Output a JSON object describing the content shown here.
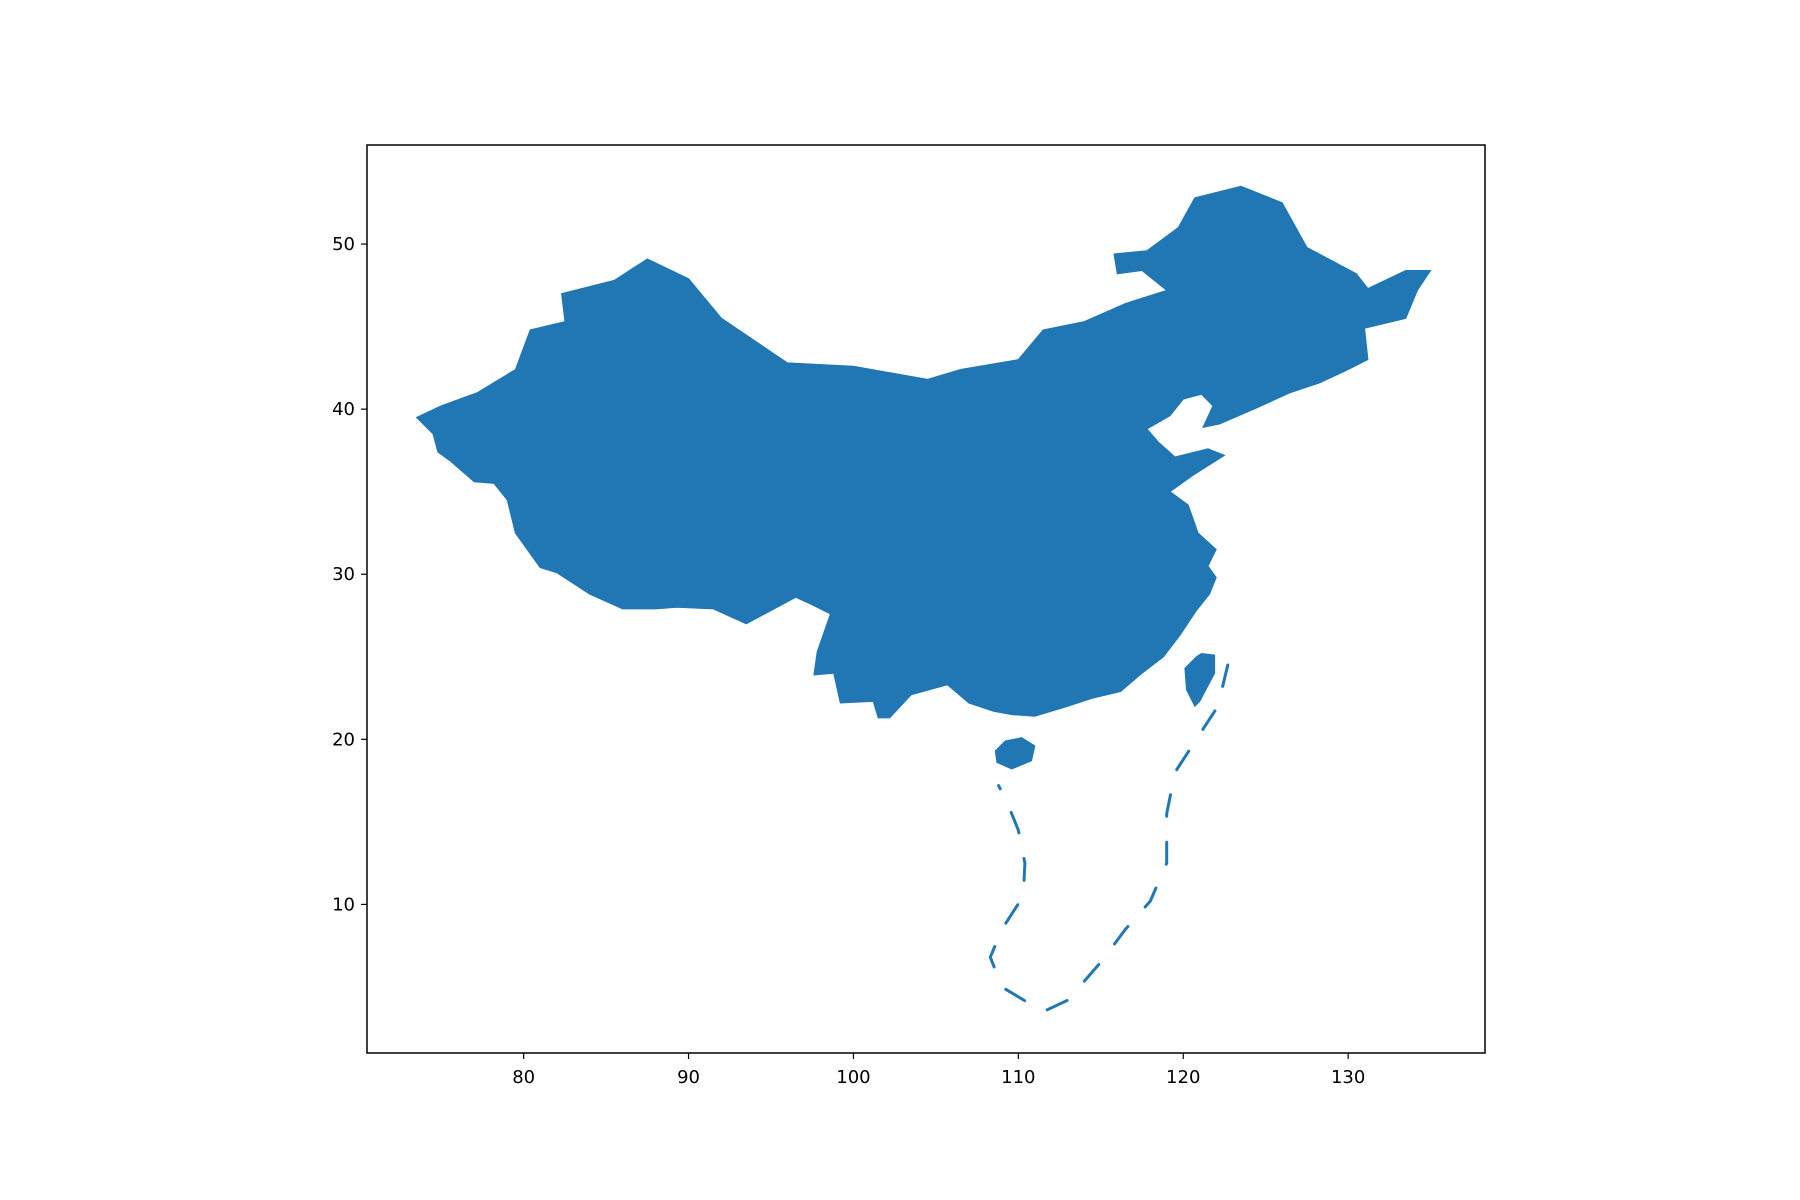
{
  "chart_data": {
    "type": "map",
    "title": "",
    "xlabel": "",
    "ylabel": "",
    "xlim": [
      70.5,
      138.3
    ],
    "ylim": [
      1,
      56
    ],
    "x_ticks": [
      80,
      90,
      100,
      110,
      120,
      130
    ],
    "y_ticks": [
      10,
      20,
      30,
      40,
      50
    ],
    "grid": false,
    "legend": "none",
    "fill_color": "#2077b4",
    "outline": [
      [
        73.5,
        39.5
      ],
      [
        75.0,
        40.2
      ],
      [
        77.2,
        41.0
      ],
      [
        79.5,
        42.4
      ],
      [
        80.4,
        44.8
      ],
      [
        82.5,
        45.3
      ],
      [
        82.3,
        47.0
      ],
      [
        85.5,
        47.8
      ],
      [
        87.5,
        49.1
      ],
      [
        90.0,
        47.9
      ],
      [
        91.0,
        46.7
      ],
      [
        92.0,
        45.5
      ],
      [
        96.0,
        42.8
      ],
      [
        100.0,
        42.6
      ],
      [
        104.5,
        41.8
      ],
      [
        106.5,
        42.4
      ],
      [
        110.0,
        43.0
      ],
      [
        111.5,
        44.8
      ],
      [
        114.0,
        45.3
      ],
      [
        116.5,
        46.4
      ],
      [
        119.0,
        47.2
      ],
      [
        117.5,
        48.4
      ],
      [
        116.0,
        48.2
      ],
      [
        115.8,
        49.4
      ],
      [
        117.8,
        49.6
      ],
      [
        119.7,
        51.0
      ],
      [
        120.7,
        52.8
      ],
      [
        123.5,
        53.5
      ],
      [
        126.0,
        52.5
      ],
      [
        127.5,
        49.8
      ],
      [
        130.5,
        48.2
      ],
      [
        131.2,
        47.3
      ],
      [
        133.5,
        48.4
      ],
      [
        135.0,
        48.4
      ],
      [
        134.2,
        47.2
      ],
      [
        133.5,
        45.5
      ],
      [
        131.0,
        44.9
      ],
      [
        131.2,
        43.0
      ],
      [
        130.0,
        42.4
      ],
      [
        128.3,
        41.6
      ],
      [
        126.5,
        41.0
      ],
      [
        124.3,
        40.0
      ],
      [
        122.2,
        39.1
      ],
      [
        121.2,
        38.9
      ],
      [
        121.8,
        40.2
      ],
      [
        121.1,
        40.9
      ],
      [
        120.0,
        40.6
      ],
      [
        119.2,
        39.6
      ],
      [
        117.8,
        38.8
      ],
      [
        118.5,
        38.0
      ],
      [
        119.5,
        37.1
      ],
      [
        121.5,
        37.6
      ],
      [
        122.5,
        37.2
      ],
      [
        120.6,
        36.0
      ],
      [
        119.2,
        35.0
      ],
      [
        120.3,
        34.2
      ],
      [
        120.9,
        32.5
      ],
      [
        122.0,
        31.5
      ],
      [
        121.5,
        30.5
      ],
      [
        122.0,
        29.8
      ],
      [
        121.6,
        28.8
      ],
      [
        120.8,
        27.8
      ],
      [
        119.8,
        26.3
      ],
      [
        118.8,
        25.0
      ],
      [
        117.5,
        24.0
      ],
      [
        116.2,
        22.9
      ],
      [
        114.5,
        22.5
      ],
      [
        113.0,
        22.0
      ],
      [
        111.0,
        21.4
      ],
      [
        109.6,
        21.5
      ],
      [
        108.5,
        21.7
      ],
      [
        107.0,
        22.2
      ],
      [
        105.7,
        23.3
      ],
      [
        103.5,
        22.7
      ],
      [
        102.2,
        21.3
      ],
      [
        101.5,
        21.3
      ],
      [
        101.2,
        22.3
      ],
      [
        99.2,
        22.2
      ],
      [
        98.8,
        24.0
      ],
      [
        97.6,
        23.9
      ],
      [
        97.8,
        25.3
      ],
      [
        98.6,
        27.6
      ],
      [
        97.4,
        28.2
      ],
      [
        96.5,
        28.6
      ],
      [
        93.5,
        27.0
      ],
      [
        91.5,
        27.9
      ],
      [
        89.3,
        28.0
      ],
      [
        88.0,
        27.9
      ],
      [
        86.0,
        27.9
      ],
      [
        84.0,
        28.8
      ],
      [
        82.0,
        30.1
      ],
      [
        81.0,
        30.4
      ],
      [
        79.5,
        32.5
      ],
      [
        79.0,
        34.5
      ],
      [
        78.2,
        35.5
      ],
      [
        77.0,
        35.6
      ],
      [
        75.5,
        36.9
      ],
      [
        74.8,
        37.4
      ],
      [
        74.5,
        38.5
      ]
    ],
    "islands": [
      {
        "name": "Taiwan",
        "outline": [
          [
            121.1,
            25.2
          ],
          [
            121.9,
            25.1
          ],
          [
            121.9,
            24.0
          ],
          [
            121.0,
            22.3
          ],
          [
            120.7,
            22.0
          ],
          [
            120.2,
            23.0
          ],
          [
            120.1,
            24.3
          ],
          [
            120.8,
            25.0
          ]
        ]
      },
      {
        "name": "Hainan",
        "outline": [
          [
            110.2,
            20.1
          ],
          [
            111.0,
            19.6
          ],
          [
            110.8,
            18.7
          ],
          [
            109.6,
            18.2
          ],
          [
            108.7,
            18.6
          ],
          [
            108.6,
            19.3
          ],
          [
            109.2,
            19.9
          ]
        ]
      }
    ],
    "dashed_boundary": [
      [
        122.7,
        24.5
      ],
      [
        122.1,
        22.0
      ],
      [
        120.8,
        20.0
      ],
      [
        119.5,
        18.0
      ],
      [
        119.0,
        15.5
      ],
      [
        119.0,
        12.5
      ],
      [
        118.0,
        10.2
      ],
      [
        116.5,
        8.5
      ],
      [
        115.0,
        6.5
      ],
      [
        113.0,
        4.2
      ],
      [
        111.5,
        3.5
      ],
      [
        109.0,
        5.0
      ],
      [
        108.3,
        6.8
      ],
      [
        109.0,
        8.5
      ],
      [
        110.3,
        10.5
      ],
      [
        110.4,
        12.5
      ],
      [
        110.0,
        14.5
      ],
      [
        109.4,
        16.0
      ],
      [
        108.8,
        17.2
      ]
    ]
  }
}
